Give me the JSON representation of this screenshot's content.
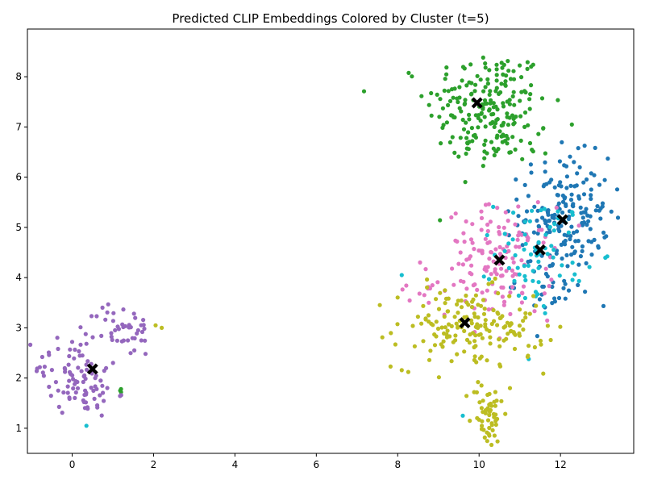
{
  "chart_data": {
    "type": "scatter",
    "title": "Predicted CLIP Embeddings Colored by Cluster (t=5)",
    "xlabel": "",
    "ylabel": "",
    "xlim": [
      -1.1,
      13.8
    ],
    "ylim": [
      0.5,
      8.95
    ],
    "xticks": [
      0,
      2,
      4,
      6,
      8,
      10,
      12
    ],
    "yticks": [
      1,
      2,
      3,
      4,
      5,
      6,
      7,
      8
    ],
    "grid": false,
    "legend": "none",
    "point_radius_hint": "small",
    "series": [
      {
        "color": "#2ca02c",
        "regions": [
          {
            "cx": 10.2,
            "cy": 7.45,
            "sx": 0.75,
            "sy": 0.55,
            "n": 190
          },
          {
            "cx": 10.6,
            "cy": 6.6,
            "sx": 0.6,
            "sy": 0.3,
            "n": 30
          }
        ],
        "extra_points": [
          [
            1.2,
            1.78
          ],
          [
            1.18,
            1.75
          ],
          [
            1.2,
            1.72
          ]
        ]
      },
      {
        "color": "#1f77b4",
        "regions": [
          {
            "cx": 12.1,
            "cy": 5.3,
            "sx": 0.55,
            "sy": 0.55,
            "n": 170
          },
          {
            "cx": 11.8,
            "cy": 4.0,
            "sx": 0.45,
            "sy": 0.5,
            "n": 40
          }
        ],
        "extra_points": []
      },
      {
        "color": "#e377c2",
        "regions": [
          {
            "cx": 10.5,
            "cy": 4.3,
            "sx": 0.65,
            "sy": 0.55,
            "n": 140
          },
          {
            "cx": 8.5,
            "cy": 3.8,
            "sx": 0.25,
            "sy": 0.25,
            "n": 12
          }
        ],
        "extra_points": []
      },
      {
        "color": "#17becf",
        "regions": [
          {
            "cx": 11.5,
            "cy": 4.5,
            "sx": 0.55,
            "sy": 0.55,
            "n": 70
          }
        ],
        "extra_points": [
          [
            0.35,
            1.05
          ],
          [
            9.6,
            1.25
          ],
          [
            8.1,
            4.05
          ]
        ]
      },
      {
        "color": "#bcbd22",
        "regions": [
          {
            "cx": 9.6,
            "cy": 3.0,
            "sx": 0.85,
            "sy": 0.4,
            "n": 150
          },
          {
            "cx": 10.2,
            "cy": 1.3,
            "sx": 0.2,
            "sy": 0.35,
            "n": 55
          },
          {
            "cx": 11.0,
            "cy": 2.8,
            "sx": 0.45,
            "sy": 0.35,
            "n": 25
          }
        ],
        "extra_points": [
          [
            2.05,
            3.05
          ],
          [
            2.2,
            3.0
          ]
        ]
      },
      {
        "color": "#9467bd",
        "regions": [
          {
            "cx": 0.0,
            "cy": 2.2,
            "sx": 0.45,
            "sy": 0.35,
            "n": 60
          },
          {
            "cx": 0.4,
            "cy": 1.7,
            "sx": 0.35,
            "sy": 0.25,
            "n": 35
          },
          {
            "cx": 1.3,
            "cy": 2.95,
            "sx": 0.35,
            "sy": 0.25,
            "n": 45
          }
        ],
        "extra_points": []
      }
    ],
    "centroids": [
      [
        9.95,
        7.48
      ],
      [
        12.05,
        5.15
      ],
      [
        10.5,
        4.35
      ],
      [
        11.5,
        4.55
      ],
      [
        9.65,
        3.1
      ],
      [
        0.5,
        2.18
      ]
    ],
    "centroid_marker": "X",
    "centroid_color": "#000000"
  }
}
